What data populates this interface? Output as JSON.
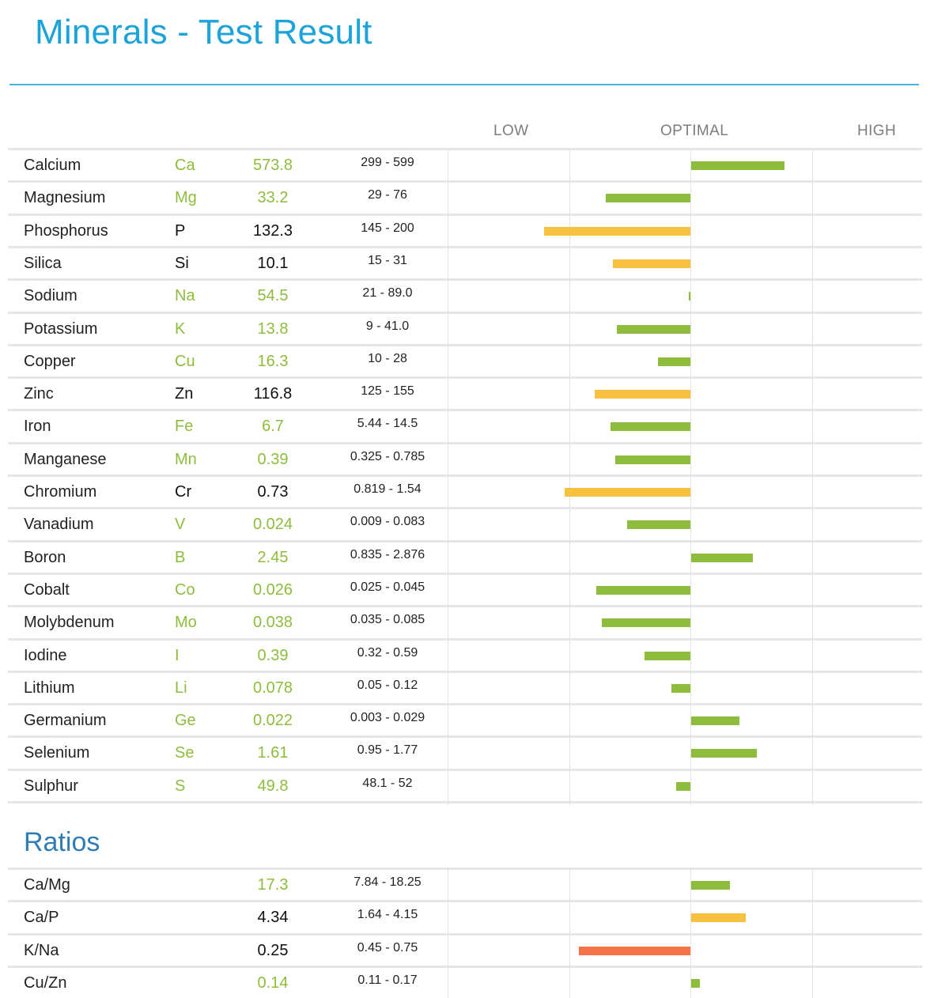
{
  "header": {
    "title": "Minerals - Test Result"
  },
  "scale_labels": {
    "low": "LOW",
    "optimal": "OPTIMAL",
    "high": "HIGH"
  },
  "colors": {
    "green": "#8ebd3d",
    "yellow": "#f8c03f",
    "red": "#f57346",
    "title_blue": "#1ba3da",
    "section_blue": "#2f7db5"
  },
  "ratios_section": {
    "title": "Ratios"
  },
  "chart_data": [
    {
      "type": "bar",
      "orientation": "horizontal",
      "baseline": "optimal-center",
      "scale_labels": [
        "LOW",
        "OPTIMAL",
        "HIGH"
      ],
      "rows": [
        {
          "name": "Calcium",
          "symbol": "Ca",
          "value": "573.8",
          "range": "299 - 599",
          "status": "green",
          "deviation": 0.77
        },
        {
          "name": "Magnesium",
          "symbol": "Mg",
          "value": "33.2",
          "range": "29 - 76",
          "status": "green",
          "deviation": -0.7
        },
        {
          "name": "Phosphorus",
          "symbol": "P",
          "value": "132.3",
          "range": "145 - 200",
          "status": "yellow",
          "deviation": -1.21
        },
        {
          "name": "Silica",
          "symbol": "Si",
          "value": "10.1",
          "range": "15 - 31",
          "status": "yellow",
          "deviation": -0.64
        },
        {
          "name": "Sodium",
          "symbol": "Na",
          "value": "54.5",
          "range": "21 - 89.0",
          "status": "green",
          "deviation": -0.01
        },
        {
          "name": "Potassium",
          "symbol": "K",
          "value": "13.8",
          "range": "9 - 41.0",
          "status": "green",
          "deviation": -0.61
        },
        {
          "name": "Copper",
          "symbol": "Cu",
          "value": "16.3",
          "range": "10 - 28",
          "status": "green",
          "deviation": -0.27
        },
        {
          "name": "Zinc",
          "symbol": "Zn",
          "value": "116.8",
          "range": "125 - 155",
          "status": "yellow",
          "deviation": -0.79
        },
        {
          "name": "Iron",
          "symbol": "Fe",
          "value": "6.7",
          "range": "5.44 - 14.5",
          "status": "green",
          "deviation": -0.66
        },
        {
          "name": "Manganese",
          "symbol": "Mn",
          "value": "0.39",
          "range": "0.325 - 0.785",
          "status": "green",
          "deviation": -0.62
        },
        {
          "name": "Chromium",
          "symbol": "Cr",
          "value": "0.73",
          "range": "0.819 - 1.54",
          "status": "yellow",
          "deviation": -1.04
        },
        {
          "name": "Vanadium",
          "symbol": "V",
          "value": "0.024",
          "range": "0.009 - 0.083",
          "status": "green",
          "deviation": -0.52
        },
        {
          "name": "Boron",
          "symbol": "B",
          "value": "2.45",
          "range": "0.835 - 2.876",
          "status": "green",
          "deviation": 0.51
        },
        {
          "name": "Cobalt",
          "symbol": "Co",
          "value": "0.026",
          "range": "0.025 - 0.045",
          "status": "green",
          "deviation": -0.78
        },
        {
          "name": "Molybdenum",
          "symbol": "Mo",
          "value": "0.038",
          "range": "0.035 - 0.085",
          "status": "green",
          "deviation": -0.73
        },
        {
          "name": "Iodine",
          "symbol": "I",
          "value": "0.39",
          "range": "0.32 - 0.59",
          "status": "green",
          "deviation": -0.38
        },
        {
          "name": "Lithium",
          "symbol": "Li",
          "value": "0.078",
          "range": "0.05 - 0.12",
          "status": "green",
          "deviation": -0.16
        },
        {
          "name": "Germanium",
          "symbol": "Ge",
          "value": "0.022",
          "range": "0.003 - 0.029",
          "status": "green",
          "deviation": 0.4
        },
        {
          "name": "Selenium",
          "symbol": "Se",
          "value": "1.61",
          "range": "0.95 - 1.77",
          "status": "green",
          "deviation": 0.54
        },
        {
          "name": "Sulphur",
          "symbol": "S",
          "value": "49.8",
          "range": "48.1 - 52",
          "status": "green",
          "deviation": -0.12
        }
      ]
    },
    {
      "type": "bar",
      "orientation": "horizontal",
      "baseline": "optimal-center",
      "rows": [
        {
          "name": "Ca/Mg",
          "symbol": "",
          "value": "17.3",
          "range": "7.84 - 18.25",
          "status": "green",
          "deviation": 0.32
        },
        {
          "name": "Ca/P",
          "symbol": "",
          "value": "4.34",
          "range": "1.64 - 4.15",
          "status": "yellow",
          "deviation": 0.45
        },
        {
          "name": "K/Na",
          "symbol": "",
          "value": "0.25",
          "range": "0.45 - 0.75",
          "status": "red",
          "deviation": -0.92
        },
        {
          "name": "Cu/Zn",
          "symbol": "",
          "value": "0.14",
          "range": "0.11 - 0.17",
          "status": "green",
          "deviation": 0.07
        }
      ]
    }
  ]
}
